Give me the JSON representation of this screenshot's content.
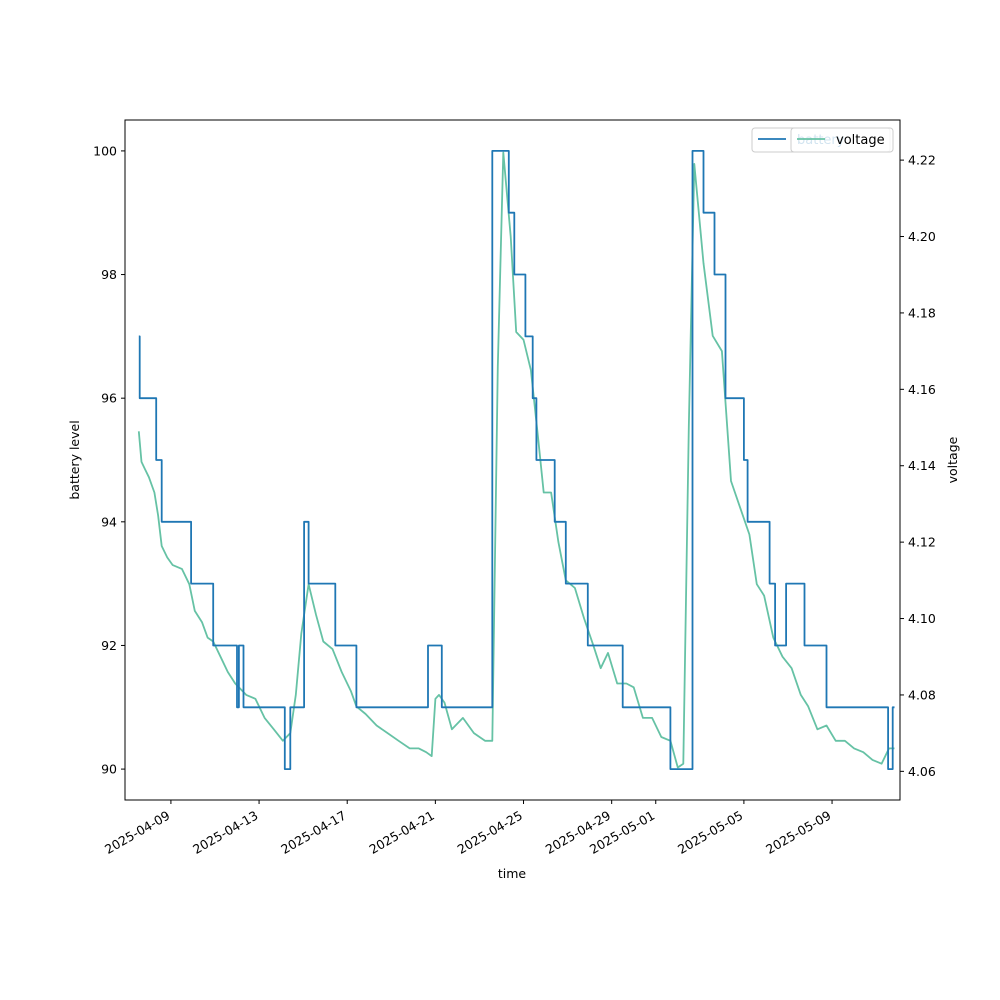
{
  "chart_data": {
    "type": "line",
    "xlabel": "time",
    "ylabel_left": "battery level",
    "ylabel_right": "voltage",
    "x_range": [
      "2025-04-06T22:00",
      "2025-05-12T02:00"
    ],
    "ylim_left": [
      89.5,
      100.5
    ],
    "ylim_right": [
      4.0525,
      4.2305
    ],
    "left_ticks": [
      90,
      92,
      94,
      96,
      98,
      100
    ],
    "right_ticks": [
      4.06,
      4.08,
      4.1,
      4.12,
      4.14,
      4.16,
      4.18,
      4.2,
      4.22
    ],
    "x_ticks": [
      "2025-04-09",
      "2025-04-13",
      "2025-04-17",
      "2025-04-21",
      "2025-04-25",
      "2025-04-29",
      "2025-05-01",
      "2025-05-05",
      "2025-05-09"
    ],
    "grid": false,
    "series": [
      {
        "name": "battery",
        "axis": "left",
        "color": "#1f77b4",
        "step": true,
        "points": [
          [
            "2025-04-07T13:00",
            97
          ],
          [
            "2025-04-07T14:00",
            96
          ],
          [
            "2025-04-08T08:00",
            95
          ],
          [
            "2025-04-08T14:00",
            94
          ],
          [
            "2025-04-09T22:00",
            93
          ],
          [
            "2025-04-10T22:00",
            92
          ],
          [
            "2025-04-12T00:00",
            91
          ],
          [
            "2025-04-12T02:00",
            92
          ],
          [
            "2025-04-12T07:00",
            91
          ],
          [
            "2025-04-14T04:00",
            90
          ],
          [
            "2025-04-14T10:00",
            91
          ],
          [
            "2025-04-15T01:00",
            94
          ],
          [
            "2025-04-15T06:00",
            93
          ],
          [
            "2025-04-16T11:00",
            92
          ],
          [
            "2025-04-17T10:00",
            91
          ],
          [
            "2025-04-20T16:00",
            92
          ],
          [
            "2025-04-21T07:00",
            91
          ],
          [
            "2025-04-23T14:00",
            100
          ],
          [
            "2025-04-24T08:00",
            99
          ],
          [
            "2025-04-24T14:00",
            98
          ],
          [
            "2025-04-25T02:00",
            97
          ],
          [
            "2025-04-25T10:00",
            96
          ],
          [
            "2025-04-25T14:00",
            95
          ],
          [
            "2025-04-26T10:00",
            94
          ],
          [
            "2025-04-26T22:00",
            93
          ],
          [
            "2025-04-27T22:00",
            92
          ],
          [
            "2025-04-29T12:00",
            91
          ],
          [
            "2025-05-01T16:00",
            90
          ],
          [
            "2025-05-02T16:00",
            100
          ],
          [
            "2025-05-03T04:00",
            99
          ],
          [
            "2025-05-03T16:00",
            98
          ],
          [
            "2025-05-04T04:00",
            96
          ],
          [
            "2025-05-05T00:00",
            95
          ],
          [
            "2025-05-05T04:00",
            94
          ],
          [
            "2025-05-06T04:00",
            93
          ],
          [
            "2025-05-06T10:00",
            92
          ],
          [
            "2025-05-06T22:00",
            93
          ],
          [
            "2025-05-07T18:00",
            92
          ],
          [
            "2025-05-08T18:00",
            91
          ],
          [
            "2025-05-11T13:00",
            90
          ],
          [
            "2025-05-11T18:00",
            91
          ],
          [
            "2025-05-11T20:00",
            91
          ]
        ]
      },
      {
        "name": "voltage",
        "axis": "right",
        "color": "#66c2a5",
        "step": false,
        "points": [
          [
            "2025-04-07T13:00",
            4.149
          ],
          [
            "2025-04-07T16:00",
            4.141
          ],
          [
            "2025-04-07T20:00",
            4.139
          ],
          [
            "2025-04-08T00:00",
            4.137
          ],
          [
            "2025-04-08T06:00",
            4.133
          ],
          [
            "2025-04-08T10:00",
            4.127
          ],
          [
            "2025-04-08T14:00",
            4.119
          ],
          [
            "2025-04-08T20:00",
            4.116
          ],
          [
            "2025-04-09T02:00",
            4.114
          ],
          [
            "2025-04-09T12:00",
            4.113
          ],
          [
            "2025-04-09T20:00",
            4.109
          ],
          [
            "2025-04-10T02:00",
            4.102
          ],
          [
            "2025-04-10T10:00",
            4.099
          ],
          [
            "2025-04-10T16:00",
            4.095
          ],
          [
            "2025-04-10T22:00",
            4.094
          ],
          [
            "2025-04-11T06:00",
            4.09
          ],
          [
            "2025-04-11T14:00",
            4.086
          ],
          [
            "2025-04-11T22:00",
            4.083
          ],
          [
            "2025-04-12T10:00",
            4.08
          ],
          [
            "2025-04-12T20:00",
            4.079
          ],
          [
            "2025-04-13T06:00",
            4.074
          ],
          [
            "2025-04-13T16:00",
            4.071
          ],
          [
            "2025-04-14T02:00",
            4.068
          ],
          [
            "2025-04-14T10:00",
            4.07
          ],
          [
            "2025-04-14T16:00",
            4.08
          ],
          [
            "2025-04-14T22:00",
            4.096
          ],
          [
            "2025-04-15T06:00",
            4.109
          ],
          [
            "2025-04-15T14:00",
            4.101
          ],
          [
            "2025-04-15T22:00",
            4.094
          ],
          [
            "2025-04-16T08:00",
            4.092
          ],
          [
            "2025-04-16T18:00",
            4.086
          ],
          [
            "2025-04-17T04:00",
            4.081
          ],
          [
            "2025-04-17T10:00",
            4.077
          ],
          [
            "2025-04-17T20:00",
            4.075
          ],
          [
            "2025-04-18T08:00",
            4.072
          ],
          [
            "2025-04-18T20:00",
            4.07
          ],
          [
            "2025-04-19T08:00",
            4.068
          ],
          [
            "2025-04-19T20:00",
            4.066
          ],
          [
            "2025-04-20T06:00",
            4.066
          ],
          [
            "2025-04-20T14:00",
            4.065
          ],
          [
            "2025-04-20T20:00",
            4.064
          ],
          [
            "2025-04-21T00:00",
            4.079
          ],
          [
            "2025-04-21T04:00",
            4.08
          ],
          [
            "2025-04-21T10:00",
            4.078
          ],
          [
            "2025-04-21T18:00",
            4.071
          ],
          [
            "2025-04-22T06:00",
            4.074
          ],
          [
            "2025-04-22T18:00",
            4.07
          ],
          [
            "2025-04-23T06:00",
            4.068
          ],
          [
            "2025-04-23T14:00",
            4.068
          ],
          [
            "2025-04-23T20:00",
            4.166
          ],
          [
            "2025-04-24T02:00",
            4.222
          ],
          [
            "2025-04-24T10:00",
            4.2
          ],
          [
            "2025-04-24T16:00",
            4.175
          ],
          [
            "2025-04-25T00:00",
            4.173
          ],
          [
            "2025-04-25T08:00",
            4.165
          ],
          [
            "2025-04-25T16:00",
            4.147
          ],
          [
            "2025-04-25T22:00",
            4.133
          ],
          [
            "2025-04-26T06:00",
            4.133
          ],
          [
            "2025-04-26T14:00",
            4.12
          ],
          [
            "2025-04-26T22:00",
            4.11
          ],
          [
            "2025-04-27T08:00",
            4.108
          ],
          [
            "2025-04-27T18:00",
            4.1
          ],
          [
            "2025-04-28T04:00",
            4.093
          ],
          [
            "2025-04-28T12:00",
            4.087
          ],
          [
            "2025-04-28T20:00",
            4.091
          ],
          [
            "2025-04-29T06:00",
            4.083
          ],
          [
            "2025-04-29T16:00",
            4.083
          ],
          [
            "2025-04-30T00:00",
            4.082
          ],
          [
            "2025-04-30T10:00",
            4.074
          ],
          [
            "2025-04-30T20:00",
            4.074
          ],
          [
            "2025-05-01T06:00",
            4.069
          ],
          [
            "2025-05-01T16:00",
            4.068
          ],
          [
            "2025-05-02T00:00",
            4.061
          ],
          [
            "2025-05-02T06:00",
            4.062
          ],
          [
            "2025-05-02T12:00",
            4.15
          ],
          [
            "2025-05-02T18:00",
            4.219
          ],
          [
            "2025-05-03T04:00",
            4.193
          ],
          [
            "2025-05-03T14:00",
            4.174
          ],
          [
            "2025-05-04T00:00",
            4.17
          ],
          [
            "2025-05-04T10:00",
            4.136
          ],
          [
            "2025-05-04T20:00",
            4.129
          ],
          [
            "2025-05-05T06:00",
            4.122
          ],
          [
            "2025-05-05T14:00",
            4.109
          ],
          [
            "2025-05-05T22:00",
            4.106
          ],
          [
            "2025-05-06T08:00",
            4.095
          ],
          [
            "2025-05-06T18:00",
            4.09
          ],
          [
            "2025-05-07T04:00",
            4.087
          ],
          [
            "2025-05-07T14:00",
            4.08
          ],
          [
            "2025-05-07T22:00",
            4.077
          ],
          [
            "2025-05-08T08:00",
            4.071
          ],
          [
            "2025-05-08T18:00",
            4.072
          ],
          [
            "2025-05-09T04:00",
            4.068
          ],
          [
            "2025-05-09T14:00",
            4.068
          ],
          [
            "2025-05-10T00:00",
            4.066
          ],
          [
            "2025-05-10T10:00",
            4.065
          ],
          [
            "2025-05-10T20:00",
            4.063
          ],
          [
            "2025-05-11T06:00",
            4.062
          ],
          [
            "2025-05-11T14:00",
            4.066
          ],
          [
            "2025-05-11T20:00",
            4.066
          ]
        ]
      }
    ],
    "legend": {
      "placement": "top-right",
      "entries": [
        "battery",
        "voltage"
      ]
    }
  }
}
